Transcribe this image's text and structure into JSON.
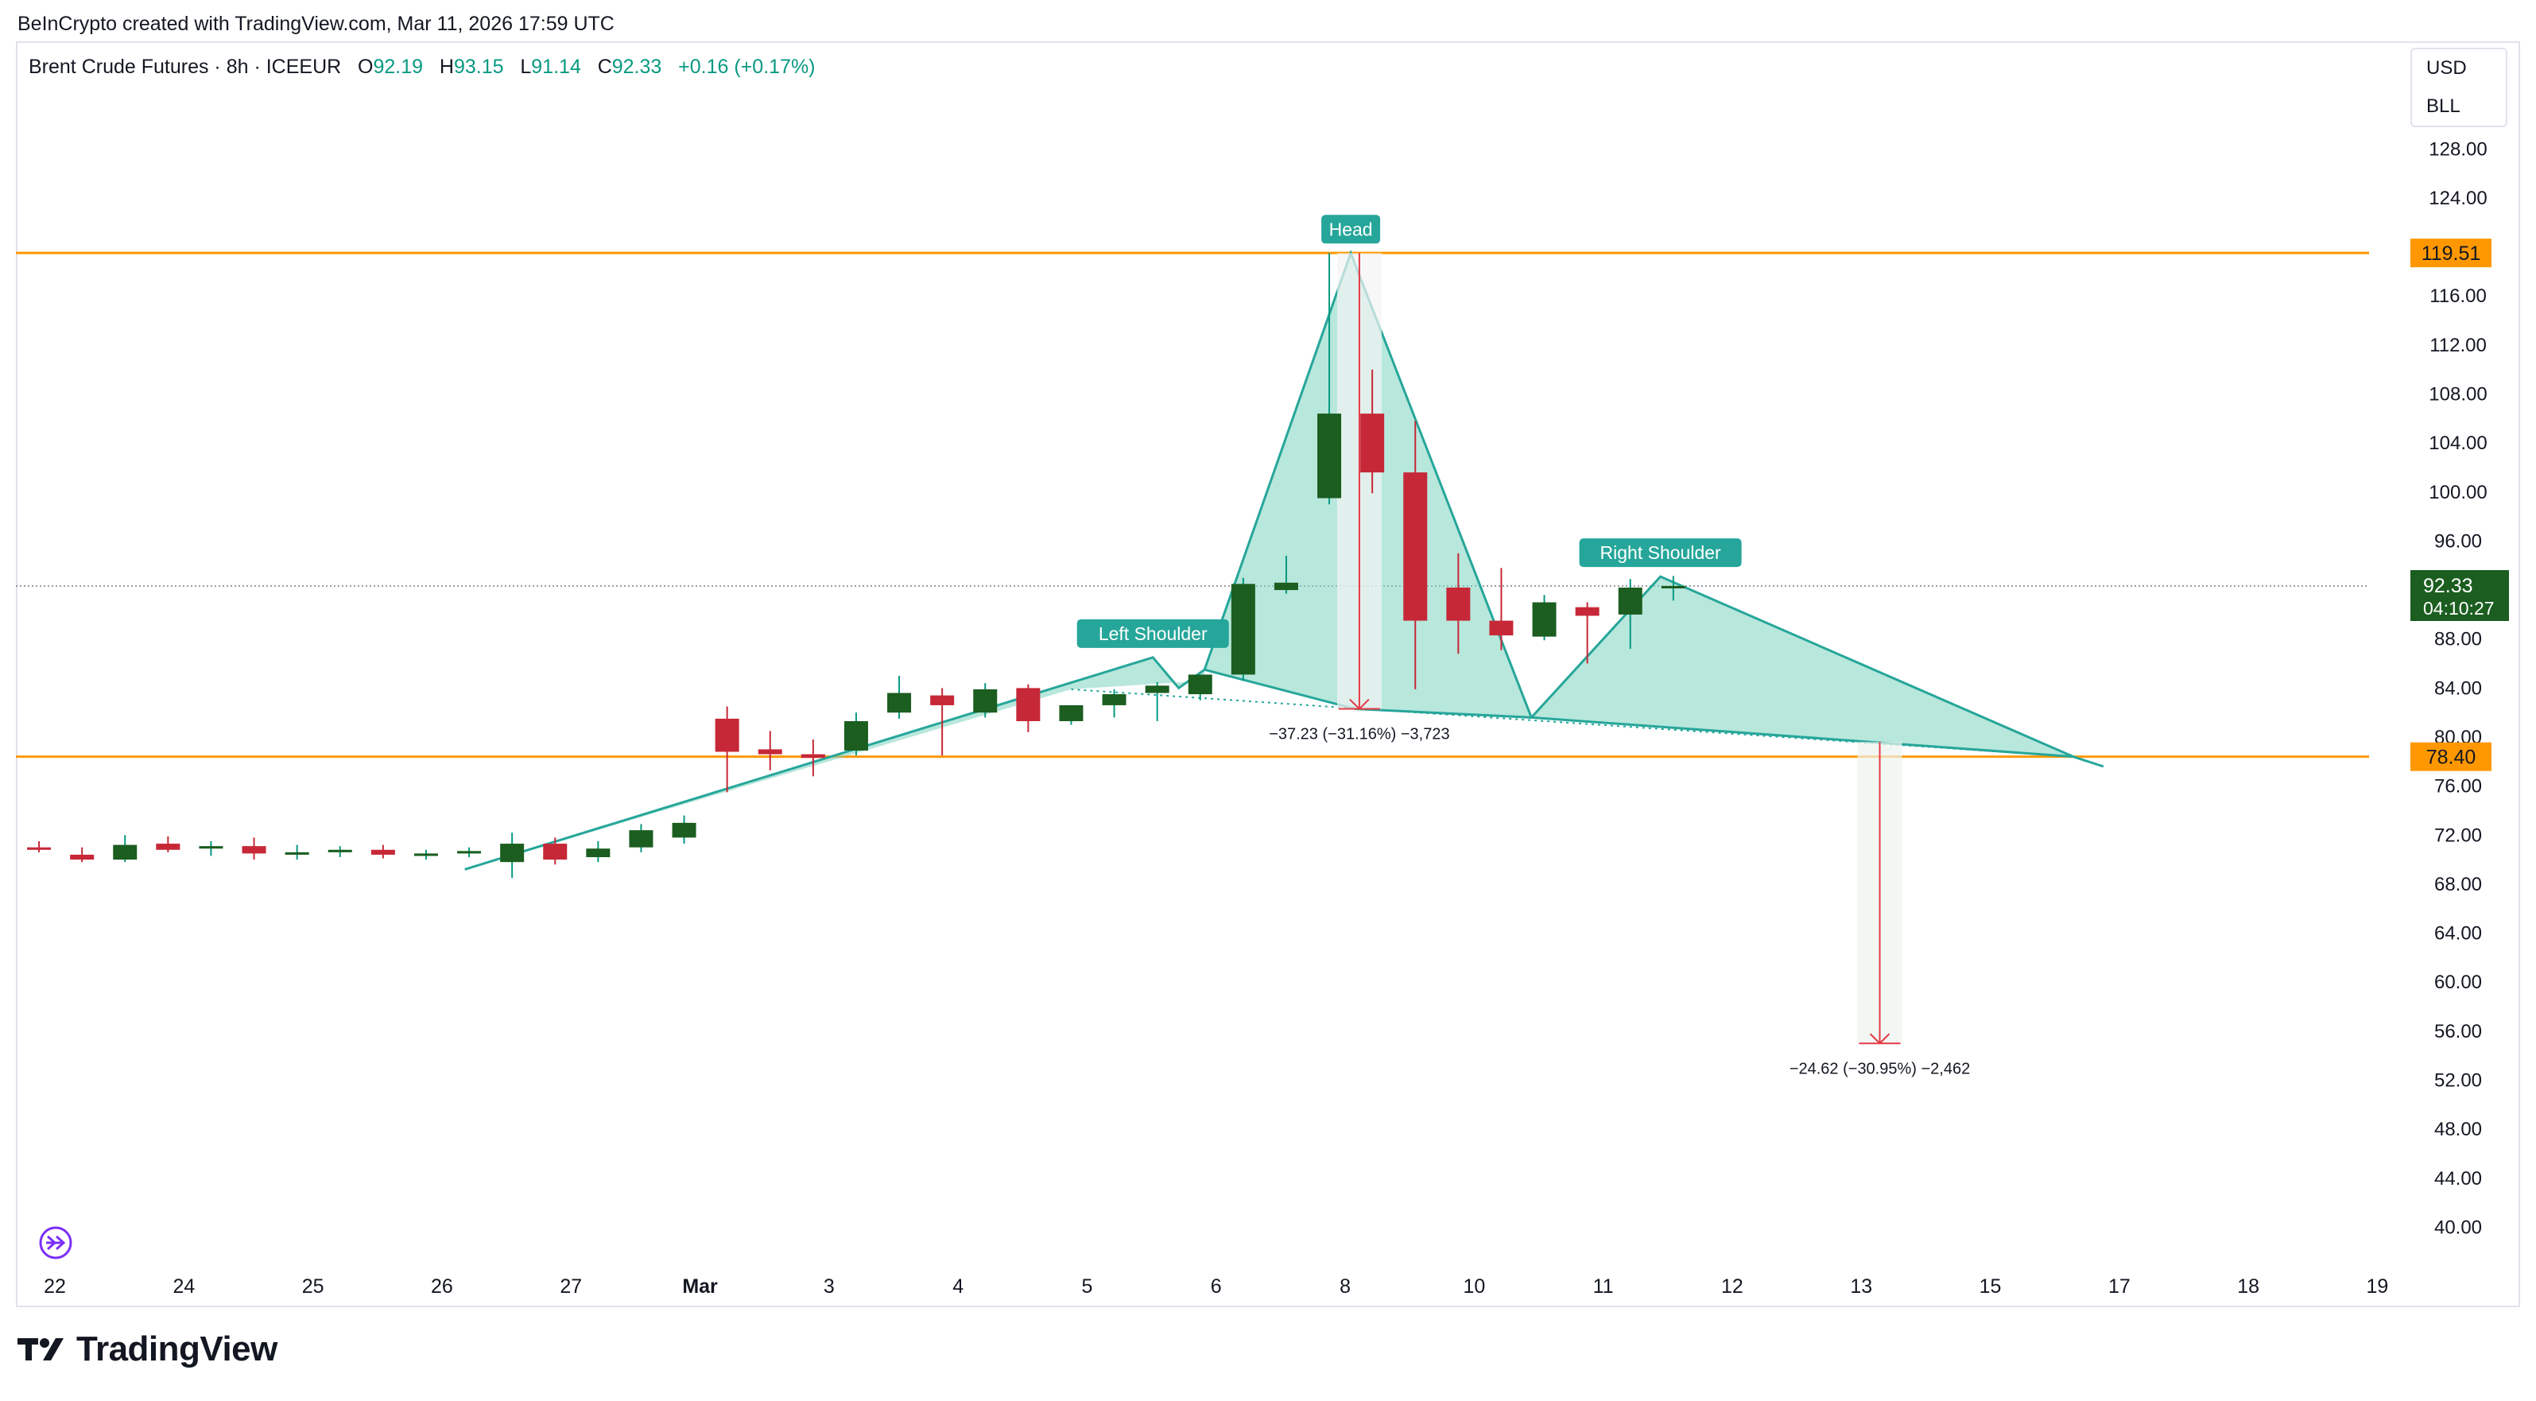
{
  "header": {
    "credit": "BeInCrypto created with TradingView.com, Mar 11, 2026 17:59 UTC"
  },
  "legend": {
    "symbol": "Brent Crude Futures · 8h · ICEEUR",
    "o_label": "O",
    "o_value": "92.19",
    "h_label": "H",
    "h_value": "93.15",
    "l_label": "L",
    "l_value": "91.14",
    "c_label": "C",
    "c_value": "92.33",
    "change": "+0.16 (+0.17%)"
  },
  "currency_box": {
    "currency": "USD",
    "indicator": "BLL"
  },
  "brand": {
    "name": "TradingView"
  },
  "colors": {
    "up": "#1b5e20",
    "up_wick": "#089981",
    "down": "#c62837",
    "level_line": "#ff9800",
    "pattern_fill": "#7dd3c0",
    "pattern_stroke": "#26a69a",
    "label_bg": "#26a69a",
    "measure": "#e53945",
    "price_tag": "#1b5e20"
  },
  "chart_data": {
    "type": "candlestick",
    "title": "",
    "y_ticks": [
      "128.00",
      "124.00",
      "116.00",
      "112.00",
      "108.00",
      "104.00",
      "100.00",
      "96.00",
      "88.00",
      "84.00",
      "80.00",
      "76.00",
      "72.00",
      "68.00",
      "64.00",
      "60.00",
      "56.00",
      "52.00",
      "48.00",
      "44.00",
      "40.00"
    ],
    "x_ticks": [
      {
        "label": "22",
        "x": 0.5
      },
      {
        "label": "24",
        "x": 3.5
      },
      {
        "label": "25",
        "x": 6.5
      },
      {
        "label": "26",
        "x": 9.5
      },
      {
        "label": "27",
        "x": 12.5
      },
      {
        "label": "Mar",
        "x": 15.5,
        "bold": true
      },
      {
        "label": "3",
        "x": 18.5
      },
      {
        "label": "4",
        "x": 21.5
      },
      {
        "label": "5",
        "x": 24.5
      },
      {
        "label": "6",
        "x": 27.5
      },
      {
        "label": "8",
        "x": 30.5
      },
      {
        "label": "10",
        "x": 33.5
      },
      {
        "label": "11",
        "x": 36.5
      },
      {
        "label": "12",
        "x": 39.5
      },
      {
        "label": "13",
        "x": 42.5
      },
      {
        "label": "15",
        "x": 45.5
      },
      {
        "label": "17",
        "x": 48.5
      },
      {
        "label": "18",
        "x": 51.5
      },
      {
        "label": "19",
        "x": 54.5
      }
    ],
    "candles": [
      {
        "o": 71.0,
        "h": 71.5,
        "l": 70.6,
        "c": 70.8
      },
      {
        "o": 70.4,
        "h": 71.0,
        "l": 69.8,
        "c": 70.0
      },
      {
        "o": 70.0,
        "h": 72.0,
        "l": 69.8,
        "c": 71.2
      },
      {
        "o": 71.3,
        "h": 71.9,
        "l": 70.6,
        "c": 70.8
      },
      {
        "o": 70.9,
        "h": 71.5,
        "l": 70.3,
        "c": 71.1
      },
      {
        "o": 71.1,
        "h": 71.8,
        "l": 70.0,
        "c": 70.5
      },
      {
        "o": 70.4,
        "h": 71.2,
        "l": 70.0,
        "c": 70.6
      },
      {
        "o": 70.6,
        "h": 71.1,
        "l": 70.2,
        "c": 70.8
      },
      {
        "o": 70.8,
        "h": 71.2,
        "l": 70.1,
        "c": 70.4
      },
      {
        "o": 70.3,
        "h": 70.8,
        "l": 70.0,
        "c": 70.5
      },
      {
        "o": 70.5,
        "h": 71.0,
        "l": 70.2,
        "c": 70.7
      },
      {
        "o": 69.8,
        "h": 72.2,
        "l": 68.5,
        "c": 71.3
      },
      {
        "o": 71.3,
        "h": 71.8,
        "l": 69.6,
        "c": 70.0
      },
      {
        "o": 70.2,
        "h": 71.5,
        "l": 69.8,
        "c": 70.9
      },
      {
        "o": 71.0,
        "h": 72.9,
        "l": 70.6,
        "c": 72.4
      },
      {
        "o": 71.8,
        "h": 73.6,
        "l": 71.3,
        "c": 73.0
      },
      {
        "o": 81.5,
        "h": 82.5,
        "l": 75.5,
        "c": 78.8
      },
      {
        "o": 79.0,
        "h": 80.5,
        "l": 77.3,
        "c": 78.6
      },
      {
        "o": 78.6,
        "h": 79.8,
        "l": 76.8,
        "c": 78.3
      },
      {
        "o": 78.9,
        "h": 82.0,
        "l": 78.5,
        "c": 81.3
      },
      {
        "o": 82.0,
        "h": 85.0,
        "l": 81.5,
        "c": 83.6
      },
      {
        "o": 83.4,
        "h": 84.0,
        "l": 78.5,
        "c": 82.6
      },
      {
        "o": 82.0,
        "h": 84.4,
        "l": 81.6,
        "c": 83.9
      },
      {
        "o": 84.0,
        "h": 84.3,
        "l": 80.4,
        "c": 81.3
      },
      {
        "o": 81.3,
        "h": 82.6,
        "l": 81.0,
        "c": 82.6
      },
      {
        "o": 82.6,
        "h": 83.9,
        "l": 81.6,
        "c": 83.5
      },
      {
        "o": 83.6,
        "h": 84.5,
        "l": 81.3,
        "c": 84.2
      },
      {
        "o": 83.5,
        "h": 84.8,
        "l": 83.0,
        "c": 85.1
      },
      {
        "o": 85.1,
        "h": 93.0,
        "l": 84.6,
        "c": 92.5
      },
      {
        "o": 92.0,
        "h": 94.8,
        "l": 91.7,
        "c": 92.6
      },
      {
        "o": 99.5,
        "h": 119.5,
        "l": 99.0,
        "c": 106.4
      },
      {
        "o": 106.4,
        "h": 110.0,
        "l": 99.9,
        "c": 101.6
      },
      {
        "o": 101.6,
        "h": 105.8,
        "l": 83.9,
        "c": 89.5
      },
      {
        "o": 92.2,
        "h": 95.0,
        "l": 86.8,
        "c": 89.5
      },
      {
        "o": 89.5,
        "h": 93.8,
        "l": 87.1,
        "c": 88.3
      },
      {
        "o": 88.2,
        "h": 91.6,
        "l": 87.9,
        "c": 91.0
      },
      {
        "o": 90.6,
        "h": 91.0,
        "l": 86.0,
        "c": 89.9
      },
      {
        "o": 90.0,
        "h": 92.9,
        "l": 87.2,
        "c": 92.2
      },
      {
        "o": 92.19,
        "h": 93.15,
        "l": 91.14,
        "c": 92.33
      }
    ],
    "levels": [
      {
        "price": 119.51,
        "label": "119.51"
      },
      {
        "price": 78.4,
        "label": "78.40"
      }
    ],
    "current_price": {
      "label": "92.33",
      "countdown": "04:10:27"
    },
    "pattern": {
      "type": "head-and-shoulders",
      "labels": [
        "Left Shoulder",
        "Head",
        "Right Shoulder"
      ],
      "left_arm": [
        [
          9.9,
          69.2
        ],
        [
          25.9,
          86.5
        ],
        [
          26.5,
          84.0
        ],
        [
          27.1,
          85.5
        ]
      ],
      "head": [
        [
          27.1,
          85.5
        ],
        [
          30.5,
          119.5
        ],
        [
          34.7,
          81.6
        ]
      ],
      "right_shoulder": [
        [
          34.7,
          81.6
        ],
        [
          37.7,
          93.1
        ],
        [
          47.3,
          78.4
        ]
      ],
      "neckline": [
        [
          24.0,
          83.9
        ],
        [
          47.3,
          78.4
        ]
      ],
      "tail": [
        [
          47.3,
          78.4
        ],
        [
          48.0,
          77.6
        ]
      ],
      "label_points": {
        "Left Shoulder": [
          25.9,
          86.5
        ],
        "Head": [
          30.5,
          119.5
        ],
        "Right Shoulder": [
          37.7,
          93.1
        ]
      }
    },
    "measurements": [
      {
        "x": 30.7,
        "from": 119.5,
        "to": 82.3,
        "label": "−37.23 (−31.16%) −3,723"
      },
      {
        "x": 42.8,
        "from": 79.6,
        "to": 55.0,
        "label": "−24.62 (−30.95%) −2,462"
      }
    ]
  }
}
